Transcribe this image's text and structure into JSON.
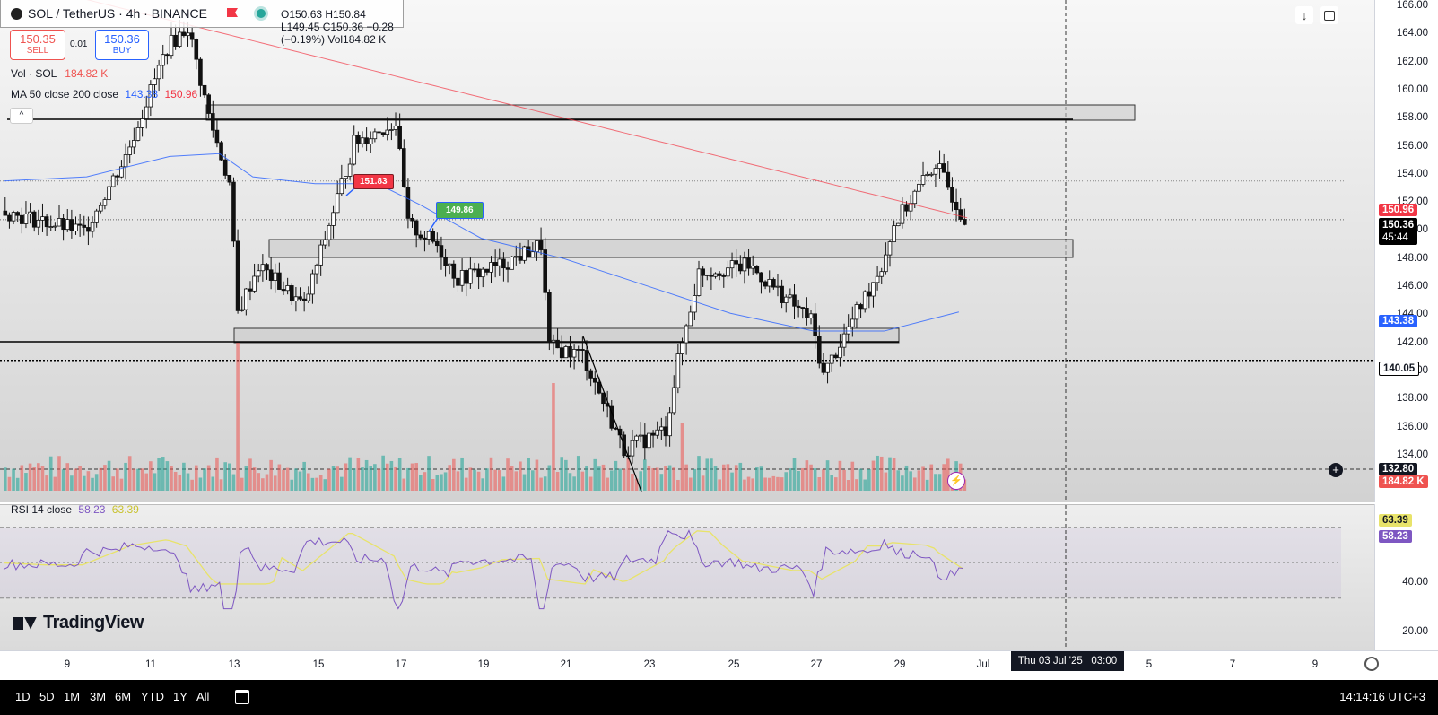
{
  "symbol": {
    "name": "SOL / TetherUS · 4h · BINANCE",
    "ohlc": "O150.63 H150.84 L149.45 C150.36 −0.28 (−0.19%) Vol184.82 K"
  },
  "trade": {
    "sell_price": "150.35",
    "sell_label": "SELL",
    "spread": "0.01",
    "buy_price": "150.36",
    "buy_label": "BUY"
  },
  "legend": {
    "vol_label": "Vol · SOL",
    "vol_value": "184.82 K",
    "ma_label": "MA 50 close 200 close",
    "ma50_value": "143.38",
    "ma200_value": "150.96",
    "rsi_label": "RSI 14 close",
    "rsi_value": "58.23",
    "rsi_ma_value": "63.39"
  },
  "annotations": {
    "red_flag": "151.83",
    "green_flag": "149.86"
  },
  "price_axis": {
    "ticks": [
      "166.00",
      "164.00",
      "162.00",
      "160.00",
      "158.00",
      "156.00",
      "154.00",
      "152.00",
      "150.00",
      "148.00",
      "146.00",
      "144.00",
      "142.00",
      "140.00",
      "138.00",
      "136.00",
      "134.00"
    ],
    "tags": {
      "ma200": "150.96",
      "last": "150.36",
      "countdown": "45:44",
      "ma50": "143.38",
      "line": "140.05",
      "crosshair": "132.80",
      "volume": "184.82 K"
    }
  },
  "rsi_axis": {
    "ticks": [
      "40.00",
      "20.00"
    ],
    "tags": {
      "rsi_ma": "63.39",
      "rsi": "58.23"
    }
  },
  "time_axis": {
    "labels": [
      "9",
      "11",
      "13",
      "15",
      "17",
      "19",
      "21",
      "23",
      "25",
      "27",
      "29",
      "Jul",
      "5",
      "7",
      "9"
    ],
    "crosshair_label": "Thu 03 Jul '25   03:00"
  },
  "toolbar": {
    "timeframes": [
      "1D",
      "5D",
      "1M",
      "3M",
      "6M",
      "YTD",
      "1Y",
      "All"
    ],
    "clock": "14:14:16 UTC+3"
  },
  "branding": {
    "logo_text": "TradingView"
  },
  "colors": {
    "up": "#26a69a",
    "down": "#ef5350",
    "ma50": "#2962ff",
    "ma200": "#f23645",
    "rsi": "#7e57c2",
    "rsi_ma": "#e8e36a"
  },
  "chart_data": {
    "type": "candlestick",
    "x_labels": [
      "9",
      "11",
      "13",
      "15",
      "17",
      "19",
      "21",
      "23",
      "25",
      "27",
      "29",
      "Jul",
      "5",
      "7",
      "9"
    ],
    "ylim": [
      133,
      166
    ],
    "candles_ohlc_sample": [
      [
        152.0,
        152.8,
        150.5,
        151.2
      ],
      [
        151.2,
        152.4,
        150.2,
        150.6
      ],
      [
        150.6,
        151.0,
        148.0,
        149.4
      ],
      [
        149.4,
        151.8,
        149.0,
        151.5
      ],
      [
        151.5,
        158.5,
        151.0,
        157.0
      ],
      [
        157.0,
        166.0,
        155.5,
        164.5
      ],
      [
        164.5,
        165.5,
        160.0,
        161.5
      ],
      [
        161.5,
        162.0,
        157.0,
        158.0
      ],
      [
        158.0,
        158.6,
        152.0,
        153.0
      ],
      [
        153.0,
        153.5,
        142.0,
        143.5
      ],
      [
        143.5,
        147.5,
        142.2,
        146.5
      ],
      [
        146.5,
        148.0,
        144.0,
        145.0
      ],
      [
        145.0,
        146.0,
        142.8,
        143.6
      ],
      [
        143.6,
        147.0,
        143.0,
        146.2
      ],
      [
        146.2,
        152.0,
        145.5,
        151.5
      ],
      [
        151.5,
        157.8,
        151.0,
        156.8
      ],
      [
        156.8,
        158.6,
        155.0,
        157.5
      ],
      [
        157.5,
        158.0,
        149.5,
        150.2
      ],
      [
        150.2,
        152.0,
        147.5,
        148.2
      ],
      [
        148.2,
        149.5,
        146.0,
        146.8
      ],
      [
        146.8,
        148.0,
        144.5,
        145.5
      ],
      [
        145.5,
        147.5,
        144.2,
        146.8
      ],
      [
        146.8,
        149.0,
        146.2,
        148.6
      ],
      [
        148.6,
        149.0,
        140.5,
        141.2
      ],
      [
        141.2,
        142.5,
        139.0,
        141.8
      ],
      [
        141.8,
        142.2,
        136.0,
        136.5
      ],
      [
        136.5,
        137.0,
        133.0,
        133.6
      ],
      [
        133.6,
        136.0,
        133.0,
        135.4
      ],
      [
        135.4,
        141.0,
        135.0,
        140.5
      ],
      [
        140.5,
        146.5,
        140.0,
        145.8
      ],
      [
        145.8,
        147.2,
        144.5,
        146.5
      ],
      [
        146.5,
        148.0,
        145.0,
        145.6
      ],
      [
        145.6,
        148.0,
        144.0,
        147.2
      ],
      [
        147.2,
        147.5,
        144.2,
        144.8
      ],
      [
        144.8,
        145.5,
        142.0,
        142.5
      ],
      [
        142.5,
        143.0,
        138.5,
        139.2
      ],
      [
        139.2,
        143.5,
        139.0,
        143.0
      ],
      [
        143.0,
        144.0,
        141.5,
        142.2
      ],
      [
        142.2,
        147.0,
        142.0,
        146.5
      ],
      [
        146.5,
        149.0,
        146.0,
        148.8
      ],
      [
        148.8,
        152.8,
        148.5,
        150.8
      ],
      [
        150.8,
        151.5,
        149.5,
        150.6
      ],
      [
        150.6,
        154.8,
        150.2,
        153.5
      ],
      [
        153.5,
        154.0,
        150.5,
        151.0
      ],
      [
        151.0,
        151.5,
        149.5,
        150.4
      ]
    ],
    "ma50_last": 143.38,
    "ma200_last": 150.96,
    "rsi_last": 58.23,
    "rsi_ma_last": 63.39,
    "horizontal_line": 140.05
  }
}
